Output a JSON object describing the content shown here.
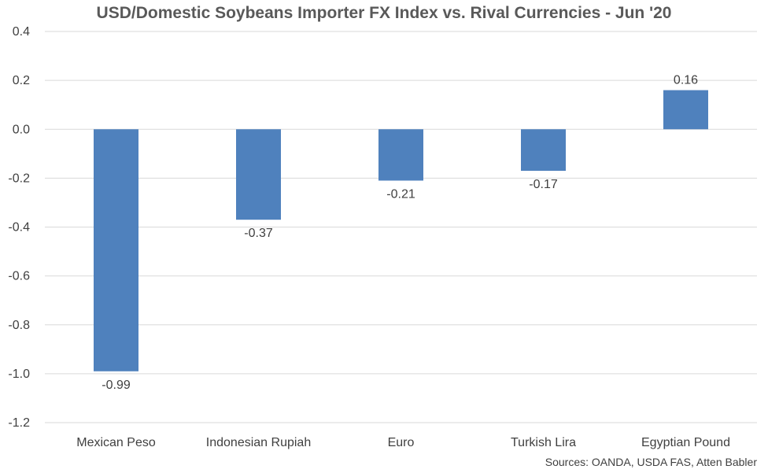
{
  "chart_data": {
    "type": "bar",
    "title": "USD/Domestic Soybeans Importer FX Index vs. Rival Currencies - Jun '20",
    "categories": [
      "Mexican Peso",
      "Indonesian Rupiah",
      "Euro",
      "Turkish Lira",
      "Egyptian Pound"
    ],
    "values": [
      -0.99,
      -0.37,
      -0.21,
      -0.17,
      0.16
    ],
    "data_labels": [
      "-0.99",
      "-0.37",
      "-0.21",
      "-0.17",
      "0.16"
    ],
    "ylim": [
      -1.2,
      0.4
    ],
    "yticks": [
      "0.4",
      "0.2",
      "0.0",
      "-0.2",
      "-0.4",
      "-0.6",
      "-0.8",
      "-1.0",
      "-1.2"
    ],
    "ytick_values": [
      0.4,
      0.2,
      0.0,
      -0.2,
      -0.4,
      -0.6,
      -0.8,
      -1.0,
      -1.2
    ],
    "grid": true,
    "bar_color": "#4f81bd",
    "gridline_color": "#d9d9d9"
  },
  "source_note": "Sources: OANDA, USDA FAS, Atten Babler"
}
